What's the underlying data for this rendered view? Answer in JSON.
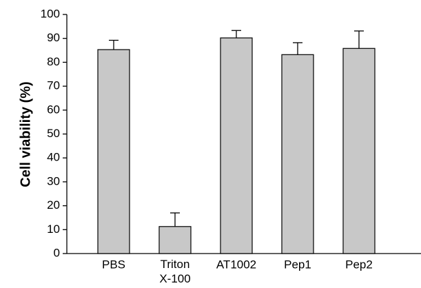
{
  "chart_data": {
    "type": "bar",
    "y_label": "Cell viability (%)",
    "categories": [
      "PBS",
      "Triton X-100",
      "AT1002",
      "Pep1",
      "Pep2"
    ],
    "values": [
      85.3,
      11.3,
      90.2,
      83.2,
      85.8
    ],
    "errors": [
      3.9,
      5.7,
      3.1,
      5.0,
      7.3
    ],
    "color": "#c8c8c8",
    "ylim": [
      0,
      100
    ],
    "yticks": [
      0,
      10,
      20,
      30,
      40,
      50,
      60,
      70,
      80,
      90,
      100
    ],
    "grid": false
  }
}
